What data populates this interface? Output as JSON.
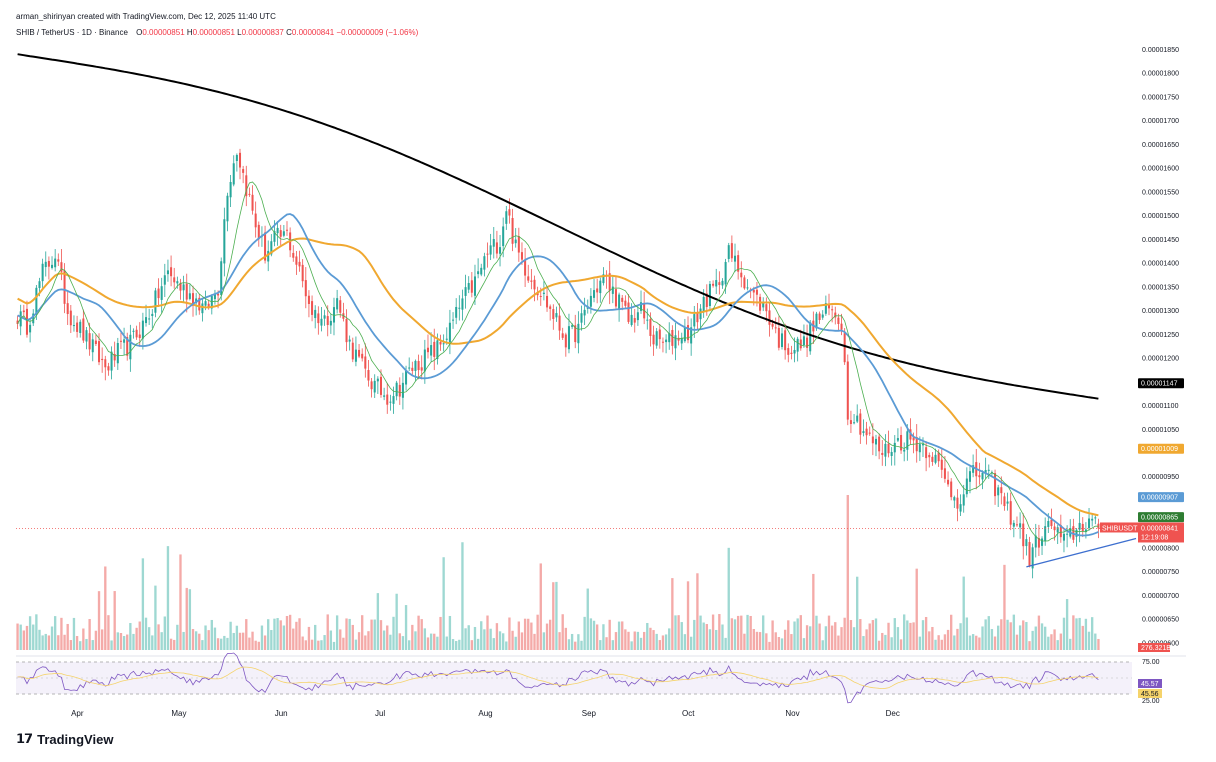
{
  "header": {
    "credit": "arman_shirinyan created with TradingView.com, Dec 12, 2025 11:40 UTC",
    "symbol": "SHIB / TetherUS · 1D · Binance",
    "ohlc": {
      "o_label": "O",
      "o": "0.00000851",
      "h_label": "H",
      "h": "0.00000851",
      "l_label": "L",
      "l": "0.00000837",
      "c_label": "C",
      "c": "0.00000841",
      "change": "−0.00000009 (−1.06%)"
    }
  },
  "footer": {
    "brand": "TradingView",
    "logo_icon": "tradingview-logo-icon"
  },
  "colors": {
    "up": "#26a69a",
    "down": "#ef5350",
    "vol_up": "#9ed8d2",
    "vol_down": "#f4aaa8",
    "ma_fast": "#4caf50",
    "ma_blue": "#5b9bd5",
    "ma_orange": "#f0a830",
    "ma_black": "#000000",
    "rsi": "#7e57c2",
    "rsi_ma": "#f5d36b",
    "trendline": "#3d6fcf"
  },
  "chart_data": {
    "type": "candlestick",
    "title": "SHIB / TetherUS · 1D · Binance",
    "x_months": [
      "Apr",
      "May",
      "Jun",
      "Jul",
      "Aug",
      "Sep",
      "Oct",
      "Nov",
      "Dec"
    ],
    "y_ticks": [
      "0.00001850",
      "0.00001800",
      "0.00001750",
      "0.00001700",
      "0.00001650",
      "0.00001600",
      "0.00001550",
      "0.00001500",
      "0.00001450",
      "0.00001400",
      "0.00001350",
      "0.00001300",
      "0.00001250",
      "0.00001200",
      "0.00001100",
      "0.00001050",
      "0.00000950",
      "0.00000800",
      "0.00000750",
      "0.00000700",
      "0.00000650",
      "0.00000600"
    ],
    "y_tick_values": [
      18.5,
      18.0,
      17.5,
      17.0,
      16.5,
      16.0,
      15.5,
      15.0,
      14.5,
      14.0,
      13.5,
      13.0,
      12.5,
      12.0,
      11.0,
      10.5,
      9.5,
      8.0,
      7.5,
      7.0,
      6.5,
      6.0
    ],
    "ylim": [
      5.85,
      18.7
    ],
    "y_unit_note": "values in 1e-6 USDT",
    "close_anchors": [
      [
        0,
        12.9
      ],
      [
        3,
        12.7
      ],
      [
        8,
        13.8
      ],
      [
        12,
        14.2
      ],
      [
        16,
        13.0
      ],
      [
        20,
        12.6
      ],
      [
        24,
        12.2
      ],
      [
        28,
        11.8
      ],
      [
        32,
        12.1
      ],
      [
        36,
        12.3
      ],
      [
        40,
        12.7
      ],
      [
        44,
        13.2
      ],
      [
        48,
        13.8
      ],
      [
        52,
        13.5
      ],
      [
        56,
        13.3
      ],
      [
        60,
        13.0
      ],
      [
        64,
        13.5
      ],
      [
        67,
        15.6
      ],
      [
        70,
        16.4
      ],
      [
        73,
        15.6
      ],
      [
        76,
        14.8
      ],
      [
        79,
        14.2
      ],
      [
        82,
        14.5
      ],
      [
        86,
        14.6
      ],
      [
        90,
        13.8
      ],
      [
        94,
        13.0
      ],
      [
        98,
        12.8
      ],
      [
        102,
        13.2
      ],
      [
        106,
        12.3
      ],
      [
        110,
        11.8
      ],
      [
        114,
        11.4
      ],
      [
        118,
        11.2
      ],
      [
        122,
        11.4
      ],
      [
        126,
        11.8
      ],
      [
        130,
        12.0
      ],
      [
        134,
        12.2
      ],
      [
        138,
        12.6
      ],
      [
        142,
        13.2
      ],
      [
        146,
        13.6
      ],
      [
        150,
        14.2
      ],
      [
        154,
        14.5
      ],
      [
        156,
        15.2
      ],
      [
        159,
        14.3
      ],
      [
        163,
        13.8
      ],
      [
        167,
        13.4
      ],
      [
        171,
        12.9
      ],
      [
        175,
        12.4
      ],
      [
        179,
        12.6
      ],
      [
        183,
        13.3
      ],
      [
        187,
        13.7
      ],
      [
        191,
        13.3
      ],
      [
        195,
        12.8
      ],
      [
        199,
        13.0
      ],
      [
        203,
        12.4
      ],
      [
        207,
        12.3
      ],
      [
        211,
        12.5
      ],
      [
        215,
        12.6
      ],
      [
        219,
        13.2
      ],
      [
        223,
        13.5
      ],
      [
        227,
        14.2
      ],
      [
        231,
        13.8
      ],
      [
        235,
        13.3
      ],
      [
        239,
        13.0
      ],
      [
        243,
        12.4
      ],
      [
        247,
        12.2
      ],
      [
        251,
        12.3
      ],
      [
        255,
        12.8
      ],
      [
        259,
        13.0
      ],
      [
        263,
        12.8
      ],
      [
        265,
        10.9
      ],
      [
        268,
        10.7
      ],
      [
        272,
        10.3
      ],
      [
        276,
        10.0
      ],
      [
        280,
        10.2
      ],
      [
        284,
        10.3
      ],
      [
        288,
        10.2
      ],
      [
        292,
        10.0
      ],
      [
        296,
        9.4
      ],
      [
        300,
        9.0
      ],
      [
        304,
        9.5
      ],
      [
        308,
        9.6
      ],
      [
        312,
        9.3
      ],
      [
        316,
        8.8
      ],
      [
        320,
        8.4
      ],
      [
        323,
        7.8
      ],
      [
        326,
        8.2
      ],
      [
        330,
        8.5
      ],
      [
        334,
        8.1
      ],
      [
        338,
        8.4
      ],
      [
        342,
        8.6
      ],
      [
        345,
        8.41
      ]
    ],
    "indicators": {
      "sma_black": {
        "last": "0.00001147"
      },
      "ema_orange": {
        "last": "0.00001009"
      },
      "sma_blue": {
        "last": "0.00000907"
      },
      "ma_green": {
        "last": "0.00000865"
      }
    },
    "last_price": {
      "symbol": "SHIBUSDT",
      "value": "0.00000841",
      "countdown": "12:19:08"
    },
    "volume": {
      "last": "276.321B"
    },
    "rsi": {
      "levels": [
        "75.00",
        "25.00"
      ],
      "value": "45.57",
      "ma": "45.56"
    },
    "trendline": {
      "from": [
        322,
        7.6
      ],
      "to": [
        357,
        8.2
      ]
    }
  }
}
